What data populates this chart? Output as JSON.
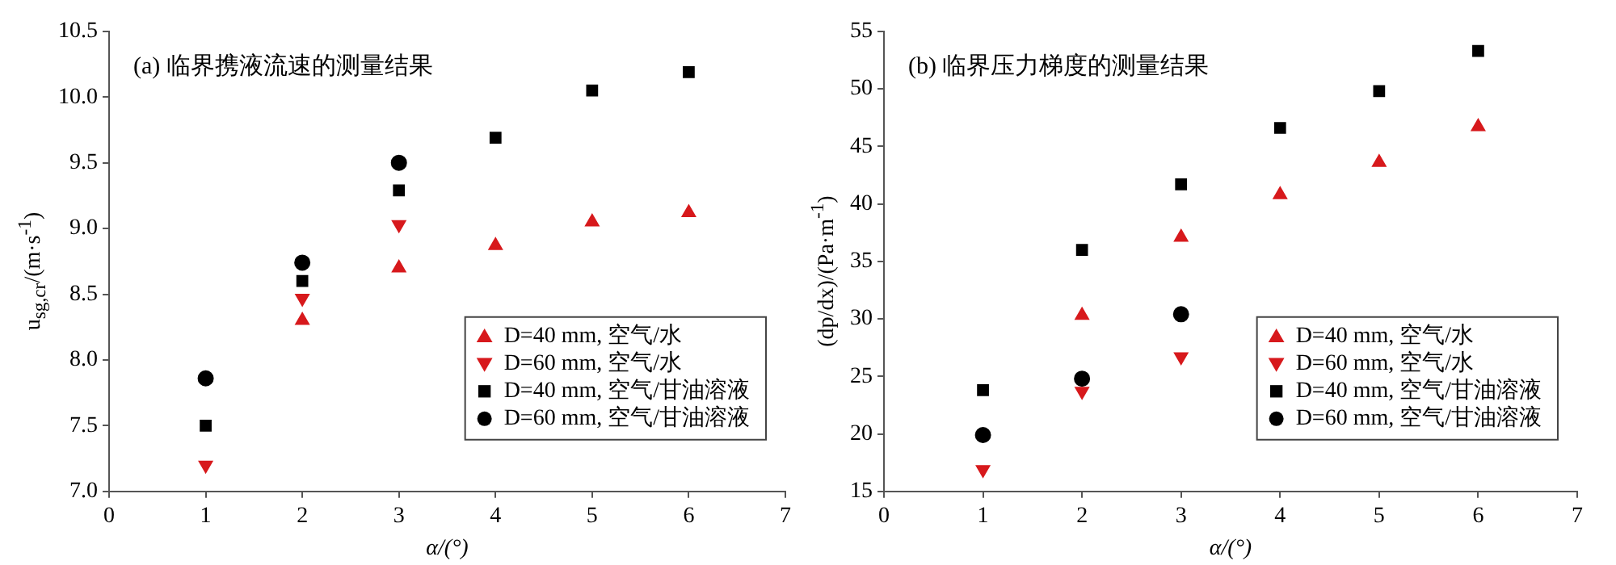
{
  "chart_data": [
    {
      "type": "scatter",
      "title": "(a) 临界携液流速的测量结果",
      "xlabel": "α/(°)",
      "ylabel": "u$_{sg,cr}$/(m·s$^{-1}$)",
      "xlim": [
        0,
        7
      ],
      "xticks": [
        0,
        1,
        2,
        3,
        4,
        5,
        6,
        7
      ],
      "ylim": [
        7,
        10.5
      ],
      "yticks": [
        {
          "value": 7,
          "label": "7.0"
        },
        {
          "value": 7.5,
          "label": "7.5"
        },
        {
          "value": 8,
          "label": "8.0"
        },
        {
          "value": 8.5,
          "label": "8.5"
        },
        {
          "value": 9,
          "label": "9.0"
        },
        {
          "value": 9.5,
          "label": "9.5"
        },
        {
          "value": 10,
          "label": "10.0"
        },
        {
          "value": 10.5,
          "label": "10.5"
        }
      ],
      "legend": "bottom right",
      "series": [
        {
          "name": "D=40 mm, 空气/水",
          "color": "#d7191c",
          "marker": "triangle",
          "x": [
            2,
            3,
            4,
            5,
            6
          ],
          "values": [
            8.3,
            8.7,
            8.87,
            9.05,
            9.12
          ]
        },
        {
          "name": "D=60 mm, 空气/水",
          "color": "#d7191c",
          "marker": "triangle-down",
          "x": [
            1,
            2,
            3
          ],
          "values": [
            7.2,
            8.47,
            9.03
          ]
        },
        {
          "name": "D=40 mm, 空气/甘油溶液",
          "color": "#000000",
          "marker": "square",
          "x": [
            1,
            2,
            3,
            4,
            5,
            6
          ],
          "values": [
            7.5,
            8.6,
            9.29,
            9.69,
            10.05,
            10.19
          ]
        },
        {
          "name": "D=60 mm, 空气/甘油溶液",
          "color": "#000000",
          "marker": "circle",
          "x": [
            1,
            2,
            3
          ],
          "values": [
            7.86,
            8.74,
            9.5
          ]
        }
      ]
    },
    {
      "type": "scatter",
      "title": "(b) 临界压力梯度的测量结果",
      "xlabel": "α/(°)",
      "ylabel": "(dp/dx)/(Pa·m$^{-1}$)",
      "xlim": [
        0,
        7
      ],
      "xticks": [
        0,
        1,
        2,
        3,
        4,
        5,
        6,
        7
      ],
      "ylim": [
        15,
        55
      ],
      "yticks": [
        15,
        20,
        25,
        30,
        35,
        40,
        45,
        50,
        55
      ],
      "legend": "bottom right",
      "series": [
        {
          "name": "D=40 mm, 空气/水",
          "color": "#d7191c",
          "marker": "triangle",
          "x": [
            2,
            3,
            4,
            5,
            6
          ],
          "values": [
            30.3,
            37.1,
            40.8,
            43.6,
            46.7
          ]
        },
        {
          "name": "D=60 mm, 空气/水",
          "color": "#d7191c",
          "marker": "triangle-down",
          "x": [
            1,
            2,
            3
          ],
          "values": [
            16.9,
            23.7,
            26.7
          ]
        },
        {
          "name": "D=40 mm, 空气/甘油溶液",
          "color": "#000000",
          "marker": "square",
          "x": [
            1,
            2,
            3,
            4,
            5,
            6
          ],
          "values": [
            23.8,
            36.0,
            41.7,
            46.6,
            49.8,
            53.3
          ]
        },
        {
          "name": "D=60 mm, 空气/甘油溶液",
          "color": "#000000",
          "marker": "circle",
          "x": [
            1,
            2,
            3
          ],
          "values": [
            19.9,
            24.8,
            30.4
          ]
        }
      ]
    }
  ]
}
